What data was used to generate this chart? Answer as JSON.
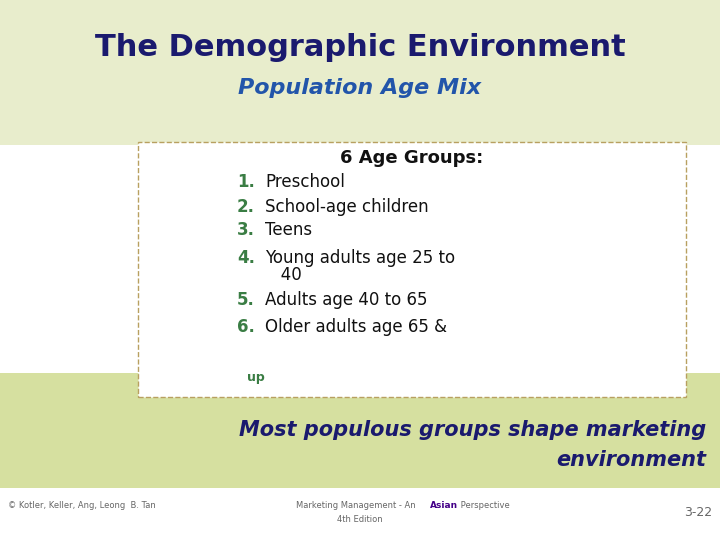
{
  "title": "The Demographic Environment",
  "subtitle": "Population Age Mix",
  "title_color": "#1a1a6e",
  "subtitle_color": "#2255aa",
  "header_bg": "#e8edcc",
  "content_bg": "#ffffff",
  "footer_bg": "#d6e0a0",
  "age_groups_header": "6 Age Groups:",
  "age_items_num": [
    "1.",
    "2.",
    "3.",
    "4.",
    "5.",
    "6."
  ],
  "age_items_text": [
    "Preschool",
    "School-age children",
    "Teens",
    "Young adults age 25 to",
    "Adults age 40 to 65",
    "Older adults age 65 &"
  ],
  "age_item4_cont": "   40",
  "number_color": "#3a7d44",
  "item_color": "#111111",
  "footer_text_line1": "Most populous groups shape marketing",
  "footer_text_line2": "environment",
  "footer_text_color": "#1a1a6e",
  "footer_up_color": "#3a7d44",
  "footer_up_text": "up",
  "bottom_left": "© Kotler, Keller, Ang, Leong  B. Tan",
  "bottom_center1": "Marketing Management - An",
  "bottom_center_asian": "Asian",
  "bottom_center2": " Perspective",
  "bottom_center3": "4th Edition",
  "bottom_right": "3-22",
  "bottom_color": "#666666",
  "asian_color": "#440088"
}
